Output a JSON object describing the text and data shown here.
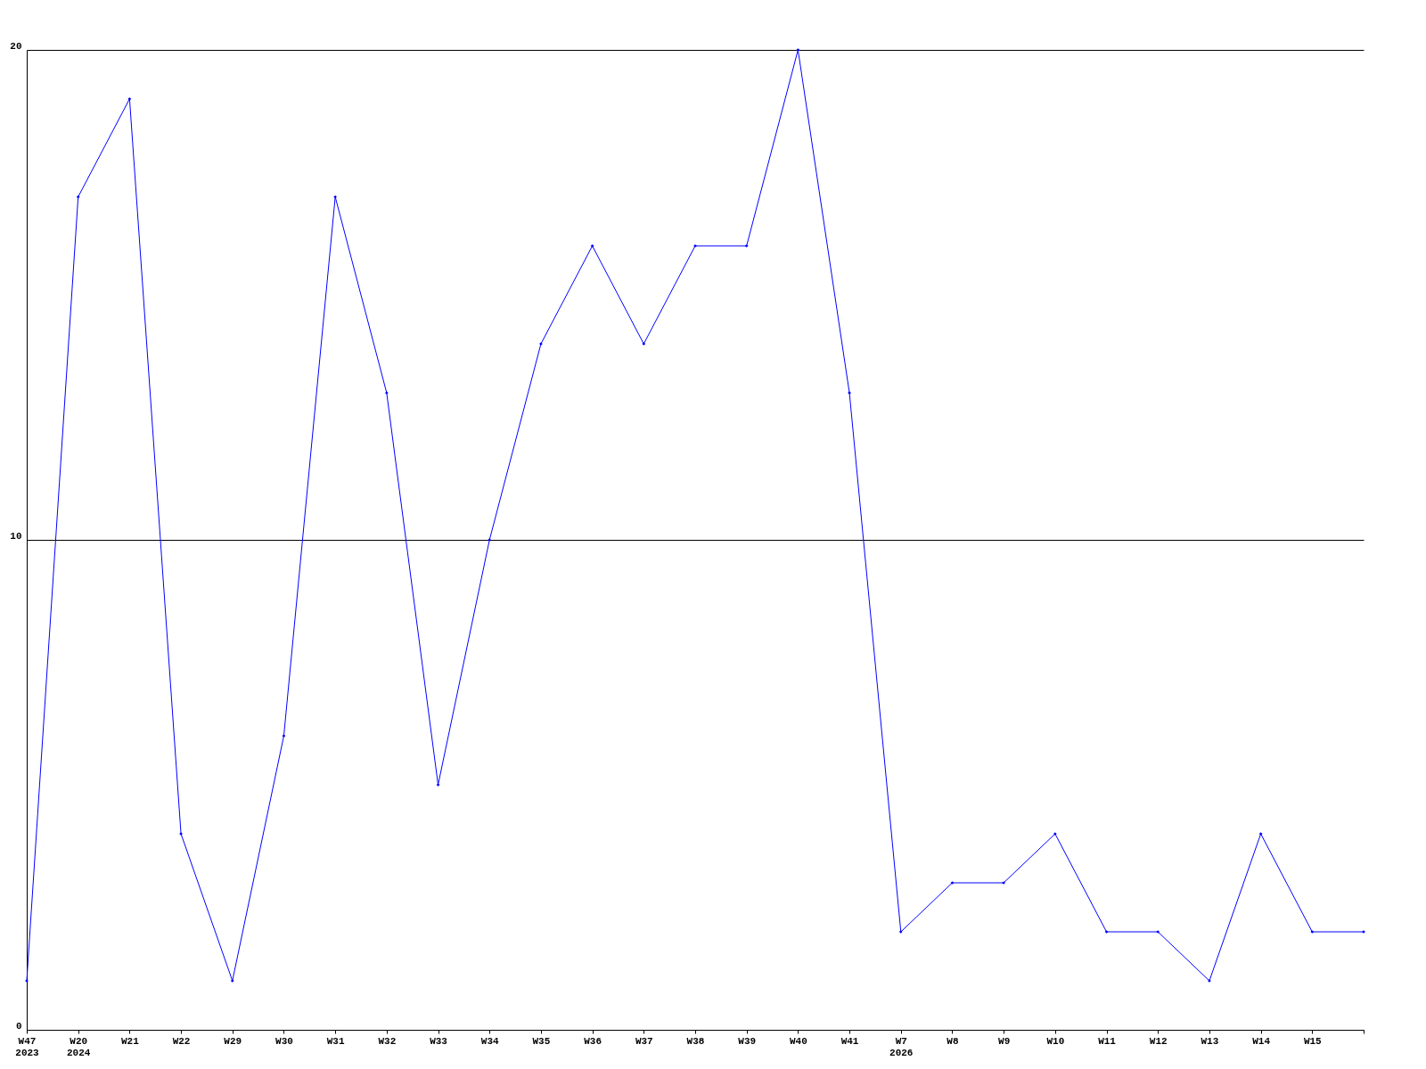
{
  "chart_data": {
    "type": "line",
    "categories": [
      "W47\n2023",
      "W20\n2024",
      "W21",
      "W22",
      "W29",
      "W30",
      "W31",
      "W32",
      "W33",
      "W34",
      "W35",
      "W36",
      "W37",
      "W38",
      "W39",
      "W40",
      "W41",
      "W7\n2026",
      "W8",
      "W9",
      "W10",
      "W11",
      "W12",
      "W13",
      "W14",
      "W15",
      null
    ],
    "series": [
      {
        "color": "#0000ff",
        "values": [
          1,
          17,
          19,
          4,
          1,
          6,
          17,
          13,
          5,
          10,
          14,
          16,
          14,
          16,
          16,
          20,
          13,
          2,
          3,
          3,
          4,
          2,
          2,
          1,
          4,
          2,
          2
        ]
      }
    ],
    "ylim": [
      0,
      20
    ],
    "yticks": [
      0,
      10,
      20
    ],
    "grid": "y",
    "marker": "diamond",
    "line_style": "solid"
  }
}
